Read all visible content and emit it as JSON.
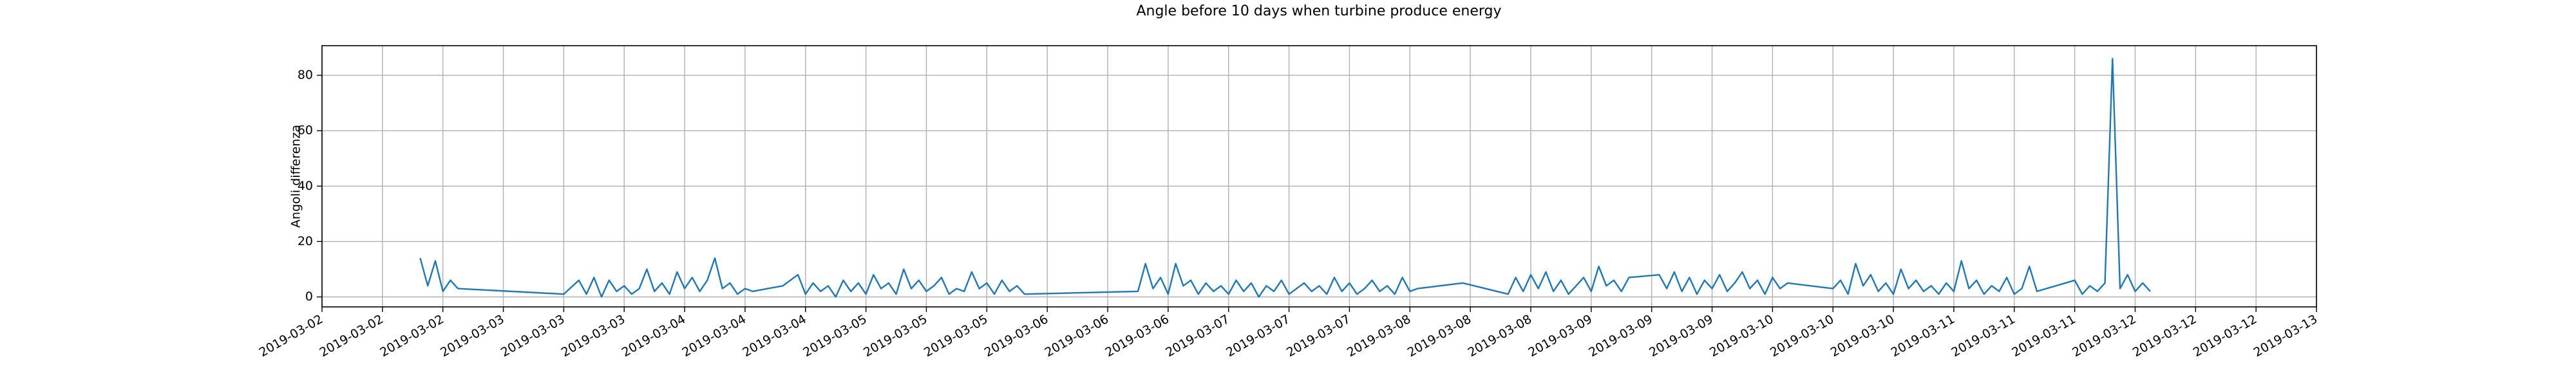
{
  "chart_data": {
    "type": "line",
    "title": "Angle before 10 days when turbine produce energy",
    "ylabel": "Angoli differenza",
    "grid": true,
    "xlim": [
      "2019-03-02T00:00",
      "2019-03-13T00:00"
    ],
    "ylim": [
      -3.6,
      90.7
    ],
    "yticks": [
      0,
      20,
      40,
      60,
      80
    ],
    "xticks": [
      {
        "value": "2019-03-02T00:00",
        "label": "2019-03-02"
      },
      {
        "value": "2019-03-02T08:00",
        "label": "2019-03-02"
      },
      {
        "value": "2019-03-02T16:00",
        "label": "2019-03-02"
      },
      {
        "value": "2019-03-03T00:00",
        "label": "2019-03-03"
      },
      {
        "value": "2019-03-03T08:00",
        "label": "2019-03-03"
      },
      {
        "value": "2019-03-03T16:00",
        "label": "2019-03-03"
      },
      {
        "value": "2019-03-04T00:00",
        "label": "2019-03-04"
      },
      {
        "value": "2019-03-04T08:00",
        "label": "2019-03-04"
      },
      {
        "value": "2019-03-04T16:00",
        "label": "2019-03-04"
      },
      {
        "value": "2019-03-05T00:00",
        "label": "2019-03-05"
      },
      {
        "value": "2019-03-05T08:00",
        "label": "2019-03-05"
      },
      {
        "value": "2019-03-05T16:00",
        "label": "2019-03-05"
      },
      {
        "value": "2019-03-06T00:00",
        "label": "2019-03-06"
      },
      {
        "value": "2019-03-06T08:00",
        "label": "2019-03-06"
      },
      {
        "value": "2019-03-06T16:00",
        "label": "2019-03-06"
      },
      {
        "value": "2019-03-07T00:00",
        "label": "2019-03-07"
      },
      {
        "value": "2019-03-07T08:00",
        "label": "2019-03-07"
      },
      {
        "value": "2019-03-07T16:00",
        "label": "2019-03-07"
      },
      {
        "value": "2019-03-08T00:00",
        "label": "2019-03-08"
      },
      {
        "value": "2019-03-08T08:00",
        "label": "2019-03-08"
      },
      {
        "value": "2019-03-08T16:00",
        "label": "2019-03-08"
      },
      {
        "value": "2019-03-09T00:00",
        "label": "2019-03-09"
      },
      {
        "value": "2019-03-09T08:00",
        "label": "2019-03-09"
      },
      {
        "value": "2019-03-09T16:00",
        "label": "2019-03-09"
      },
      {
        "value": "2019-03-10T00:00",
        "label": "2019-03-10"
      },
      {
        "value": "2019-03-10T08:00",
        "label": "2019-03-10"
      },
      {
        "value": "2019-03-10T16:00",
        "label": "2019-03-10"
      },
      {
        "value": "2019-03-11T00:00",
        "label": "2019-03-11"
      },
      {
        "value": "2019-03-11T08:00",
        "label": "2019-03-11"
      },
      {
        "value": "2019-03-11T16:00",
        "label": "2019-03-11"
      },
      {
        "value": "2019-03-12T00:00",
        "label": "2019-03-12"
      },
      {
        "value": "2019-03-12T08:00",
        "label": "2019-03-12"
      },
      {
        "value": "2019-03-12T16:00",
        "label": "2019-03-12"
      },
      {
        "value": "2019-03-13T00:00",
        "label": "2019-03-13"
      }
    ],
    "x": [
      "2019-03-02T13:00",
      "2019-03-02T14:00",
      "2019-03-02T15:00",
      "2019-03-02T16:00",
      "2019-03-02T17:00",
      "2019-03-02T18:00",
      "2019-03-03T08:00",
      "2019-03-03T10:00",
      "2019-03-03T11:00",
      "2019-03-03T12:00",
      "2019-03-03T13:00",
      "2019-03-03T14:00",
      "2019-03-03T15:00",
      "2019-03-03T16:00",
      "2019-03-03T17:00",
      "2019-03-03T18:00",
      "2019-03-03T19:00",
      "2019-03-03T20:00",
      "2019-03-03T21:00",
      "2019-03-03T22:00",
      "2019-03-03T23:00",
      "2019-03-04T00:00",
      "2019-03-04T01:00",
      "2019-03-04T02:00",
      "2019-03-04T03:00",
      "2019-03-04T04:00",
      "2019-03-04T05:00",
      "2019-03-04T06:00",
      "2019-03-04T07:00",
      "2019-03-04T08:00",
      "2019-03-04T09:00",
      "2019-03-04T11:00",
      "2019-03-04T13:00",
      "2019-03-04T15:00",
      "2019-03-04T16:00",
      "2019-03-04T17:00",
      "2019-03-04T18:00",
      "2019-03-04T19:00",
      "2019-03-04T20:00",
      "2019-03-04T21:00",
      "2019-03-04T22:00",
      "2019-03-04T23:00",
      "2019-03-05T00:00",
      "2019-03-05T01:00",
      "2019-03-05T02:00",
      "2019-03-05T03:00",
      "2019-03-05T04:00",
      "2019-03-05T05:00",
      "2019-03-05T06:00",
      "2019-03-05T07:00",
      "2019-03-05T08:00",
      "2019-03-05T09:00",
      "2019-03-05T10:00",
      "2019-03-05T11:00",
      "2019-03-05T12:00",
      "2019-03-05T13:00",
      "2019-03-05T14:00",
      "2019-03-05T15:00",
      "2019-03-05T16:00",
      "2019-03-05T17:00",
      "2019-03-05T18:00",
      "2019-03-05T19:00",
      "2019-03-05T20:00",
      "2019-03-05T21:00",
      "2019-03-06T12:00",
      "2019-03-06T13:00",
      "2019-03-06T14:00",
      "2019-03-06T15:00",
      "2019-03-06T16:00",
      "2019-03-06T17:00",
      "2019-03-06T18:00",
      "2019-03-06T19:00",
      "2019-03-06T20:00",
      "2019-03-06T21:00",
      "2019-03-06T22:00",
      "2019-03-06T23:00",
      "2019-03-07T00:00",
      "2019-03-07T01:00",
      "2019-03-07T02:00",
      "2019-03-07T03:00",
      "2019-03-07T04:00",
      "2019-03-07T05:00",
      "2019-03-07T06:00",
      "2019-03-07T07:00",
      "2019-03-07T08:00",
      "2019-03-07T09:00",
      "2019-03-07T10:00",
      "2019-03-07T11:00",
      "2019-03-07T12:00",
      "2019-03-07T13:00",
      "2019-03-07T14:00",
      "2019-03-07T15:00",
      "2019-03-07T16:00",
      "2019-03-07T17:00",
      "2019-03-07T18:00",
      "2019-03-07T19:00",
      "2019-03-07T20:00",
      "2019-03-07T21:00",
      "2019-03-07T22:00",
      "2019-03-07T23:00",
      "2019-03-08T00:00",
      "2019-03-08T01:00",
      "2019-03-08T07:00",
      "2019-03-08T13:00",
      "2019-03-08T14:00",
      "2019-03-08T15:00",
      "2019-03-08T16:00",
      "2019-03-08T17:00",
      "2019-03-08T18:00",
      "2019-03-08T19:00",
      "2019-03-08T20:00",
      "2019-03-08T21:00",
      "2019-03-08T22:00",
      "2019-03-08T23:00",
      "2019-03-09T00:00",
      "2019-03-09T01:00",
      "2019-03-09T02:00",
      "2019-03-09T03:00",
      "2019-03-09T04:00",
      "2019-03-09T05:00",
      "2019-03-09T09:00",
      "2019-03-09T10:00",
      "2019-03-09T11:00",
      "2019-03-09T12:00",
      "2019-03-09T13:00",
      "2019-03-09T14:00",
      "2019-03-09T15:00",
      "2019-03-09T16:00",
      "2019-03-09T17:00",
      "2019-03-09T18:00",
      "2019-03-09T19:00",
      "2019-03-09T20:00",
      "2019-03-09T21:00",
      "2019-03-09T22:00",
      "2019-03-09T23:00",
      "2019-03-10T00:00",
      "2019-03-10T01:00",
      "2019-03-10T02:00",
      "2019-03-10T08:00",
      "2019-03-10T09:00",
      "2019-03-10T10:00",
      "2019-03-10T11:00",
      "2019-03-10T12:00",
      "2019-03-10T13:00",
      "2019-03-10T14:00",
      "2019-03-10T15:00",
      "2019-03-10T16:00",
      "2019-03-10T17:00",
      "2019-03-10T18:00",
      "2019-03-10T19:00",
      "2019-03-10T20:00",
      "2019-03-10T21:00",
      "2019-03-10T22:00",
      "2019-03-10T23:00",
      "2019-03-11T00:00",
      "2019-03-11T01:00",
      "2019-03-11T02:00",
      "2019-03-11T03:00",
      "2019-03-11T04:00",
      "2019-03-11T05:00",
      "2019-03-11T06:00",
      "2019-03-11T07:00",
      "2019-03-11T08:00",
      "2019-03-11T09:00",
      "2019-03-11T10:00",
      "2019-03-11T11:00",
      "2019-03-11T16:00",
      "2019-03-11T17:00",
      "2019-03-11T18:00",
      "2019-03-11T19:00",
      "2019-03-11T20:00",
      "2019-03-11T21:00",
      "2019-03-11T22:00",
      "2019-03-11T23:00",
      "2019-03-12T00:00",
      "2019-03-12T01:00",
      "2019-03-12T02:00"
    ],
    "series": [
      {
        "color": "#1f77b4",
        "values": [
          14,
          4,
          13,
          2,
          6,
          3,
          1,
          6,
          1,
          7,
          0,
          6,
          2,
          4,
          1,
          3,
          10,
          2,
          5,
          1,
          9,
          3,
          7,
          2,
          6,
          14,
          3,
          5,
          1,
          3,
          2,
          3,
          4,
          8,
          1,
          5,
          2,
          4,
          0,
          6,
          2,
          5,
          1,
          8,
          3,
          5,
          1,
          10,
          3,
          6,
          2,
          4,
          7,
          1,
          3,
          2,
          9,
          3,
          5,
          1,
          6,
          2,
          4,
          1,
          2,
          12,
          3,
          7,
          1,
          12,
          4,
          6,
          1,
          5,
          2,
          4,
          1,
          6,
          2,
          5,
          0,
          4,
          2,
          6,
          1,
          3,
          5,
          2,
          4,
          1,
          7,
          2,
          5,
          1,
          3,
          6,
          2,
          4,
          1,
          7,
          2,
          3,
          5,
          1,
          7,
          2,
          8,
          3,
          9,
          2,
          6,
          1,
          4,
          7,
          2,
          11,
          4,
          6,
          2,
          7,
          8,
          3,
          9,
          2,
          7,
          1,
          6,
          3,
          8,
          2,
          5,
          9,
          3,
          6,
          1,
          7,
          3,
          5,
          3,
          6,
          1,
          12,
          4,
          8,
          2,
          5,
          1,
          10,
          3,
          6,
          2,
          4,
          1,
          5,
          2,
          13,
          3,
          6,
          1,
          4,
          2,
          7,
          1,
          3,
          11,
          2,
          6,
          1,
          4,
          2,
          5,
          86,
          3,
          8,
          2,
          5,
          2
        ]
      }
    ]
  }
}
